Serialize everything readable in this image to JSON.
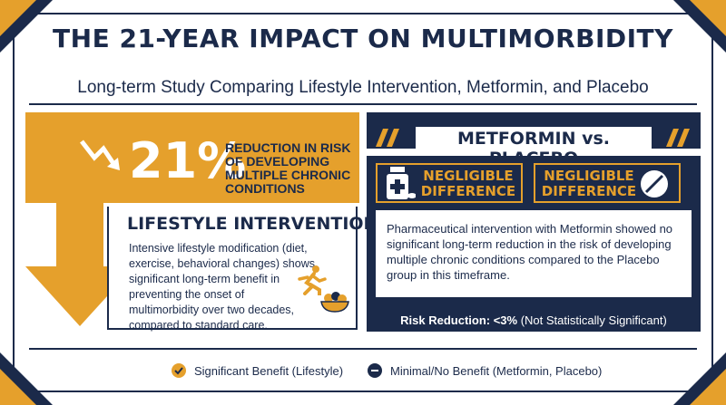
{
  "header": {
    "title": "THE 21-YEAR IMPACT ON MULTIMORBIDITY",
    "subtitle": "Long-term Study Comparing Lifestyle Intervention, Metformin, and Placebo"
  },
  "lifestyle": {
    "percentage": "21%",
    "reduction_label": "REDUCTION IN RISK OF DEVELOPING MULTIPLE CHRONIC CONDITIONS",
    "title": "LIFESTYLE INTERVENTION",
    "description": "Intensive lifestyle modification (diet, exercise, behavioral changes) shows significant long-term benefit in preventing the onset of multimorbidity over two decades, compared to standard care."
  },
  "metformin": {
    "title": "METFORMIN vs. PLACEBO",
    "left_badge": "NEGLIGIBLE DIFFERENCE",
    "right_badge": "NEGLIGIBLE DIFFERENCE",
    "description": "Pharmaceutical intervention with Metformin showed no significant long-term reduction in the risk of developing multiple chronic conditions compared to the Placebo group in this timeframe.",
    "risk_label": "Risk Reduction: <3%",
    "risk_note": "(Not Statistically Significant)"
  },
  "legend": {
    "benefit": "Significant Benefit (Lifestyle)",
    "no_benefit": "Minimal/No Benefit (Metformin, Placebo)"
  },
  "colors": {
    "navy": "#1b2a4a",
    "gold": "#e5a02c"
  }
}
